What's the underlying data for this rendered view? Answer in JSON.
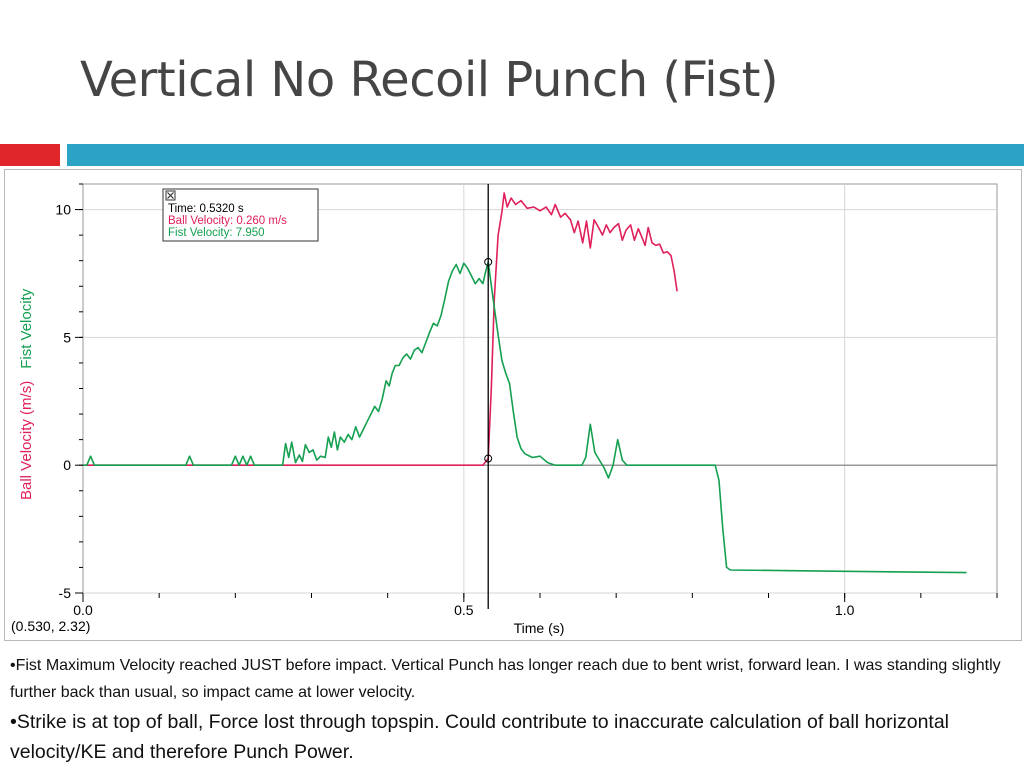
{
  "slide": {
    "title": "Vertical No Recoil Punch (Fist)",
    "colors": {
      "title": "#454545",
      "accent_red": "#e0262b",
      "accent_blue": "#2aa3c4"
    }
  },
  "chart_data": {
    "type": "line",
    "title": "",
    "xlabel": "Time (s)",
    "ylabel_parts": [
      "Ball Velocity (m/s)",
      "Fist Velocity"
    ],
    "xlim": [
      0,
      1.2
    ],
    "ylim": [
      -5,
      11
    ],
    "x_ticks": [
      {
        "v": 0,
        "label": "0.0"
      },
      {
        "v": 0.5,
        "label": "0.5"
      },
      {
        "v": 1.0,
        "label": "1.0"
      }
    ],
    "y_ticks": [
      {
        "v": -5,
        "label": "-5"
      },
      {
        "v": 0,
        "label": "0"
      },
      {
        "v": 5,
        "label": "5"
      },
      {
        "v": 10,
        "label": "10"
      }
    ],
    "grid": true,
    "cursor_x": 0.532,
    "coordinate_readout": "(0.530, 2.32)",
    "readout_box": {
      "lines": [
        "Time: 0.5320 s",
        "Ball Velocity: 0.260 m/s",
        "Fist Velocity: 7.950"
      ],
      "colors": [
        "#000000",
        "#e0205a",
        "#14a050"
      ]
    },
    "series": [
      {
        "name": "Ball Velocity",
        "color": "#e0205a",
        "points": [
          [
            0,
            0
          ],
          [
            0.525,
            0
          ],
          [
            0.532,
            0.26
          ],
          [
            0.536,
            3
          ],
          [
            0.54,
            6.5
          ],
          [
            0.545,
            9
          ],
          [
            0.55,
            9.9
          ],
          [
            0.553,
            10.65
          ],
          [
            0.557,
            10.1
          ],
          [
            0.562,
            10.45
          ],
          [
            0.568,
            10.2
          ],
          [
            0.575,
            10.35
          ],
          [
            0.583,
            10.05
          ],
          [
            0.592,
            10.1
          ],
          [
            0.6,
            9.95
          ],
          [
            0.608,
            10.1
          ],
          [
            0.615,
            9.8
          ],
          [
            0.62,
            10.2
          ],
          [
            0.627,
            9.7
          ],
          [
            0.633,
            9.85
          ],
          [
            0.64,
            9.6
          ],
          [
            0.645,
            9.1
          ],
          [
            0.65,
            9.55
          ],
          [
            0.656,
            8.7
          ],
          [
            0.661,
            9.55
          ],
          [
            0.666,
            8.5
          ],
          [
            0.671,
            9.6
          ],
          [
            0.677,
            9.3
          ],
          [
            0.682,
            9.0
          ],
          [
            0.687,
            9.4
          ],
          [
            0.692,
            9.1
          ],
          [
            0.697,
            9.3
          ],
          [
            0.703,
            9.45
          ],
          [
            0.708,
            8.8
          ],
          [
            0.713,
            9.2
          ],
          [
            0.719,
            9.4
          ],
          [
            0.724,
            8.8
          ],
          [
            0.729,
            9.25
          ],
          [
            0.734,
            8.9
          ],
          [
            0.738,
            8.6
          ],
          [
            0.742,
            9.3
          ],
          [
            0.747,
            8.7
          ],
          [
            0.752,
            8.6
          ],
          [
            0.757,
            8.65
          ],
          [
            0.762,
            8.3
          ],
          [
            0.767,
            8.35
          ],
          [
            0.772,
            8.2
          ],
          [
            0.776,
            7.6
          ],
          [
            0.78,
            6.8
          ]
        ]
      },
      {
        "name": "Fist Velocity",
        "color": "#14a050",
        "points": [
          [
            0,
            0
          ],
          [
            0.005,
            0
          ],
          [
            0.01,
            0.35
          ],
          [
            0.015,
            0
          ],
          [
            0.135,
            0
          ],
          [
            0.14,
            0.35
          ],
          [
            0.145,
            0
          ],
          [
            0.195,
            0
          ],
          [
            0.2,
            0.35
          ],
          [
            0.205,
            0
          ],
          [
            0.21,
            0.35
          ],
          [
            0.215,
            0
          ],
          [
            0.22,
            0.35
          ],
          [
            0.225,
            0
          ],
          [
            0.262,
            0
          ],
          [
            0.266,
            0.85
          ],
          [
            0.27,
            0.3
          ],
          [
            0.274,
            0.9
          ],
          [
            0.279,
            0.1
          ],
          [
            0.284,
            0.4
          ],
          [
            0.288,
            0.15
          ],
          [
            0.292,
            0.8
          ],
          [
            0.297,
            0.5
          ],
          [
            0.302,
            0.6
          ],
          [
            0.307,
            0.2
          ],
          [
            0.312,
            0.35
          ],
          [
            0.318,
            0.3
          ],
          [
            0.322,
            1.1
          ],
          [
            0.326,
            0.7
          ],
          [
            0.33,
            1.3
          ],
          [
            0.334,
            0.6
          ],
          [
            0.338,
            1.1
          ],
          [
            0.343,
            0.9
          ],
          [
            0.348,
            1.2
          ],
          [
            0.353,
            1.0
          ],
          [
            0.358,
            1.5
          ],
          [
            0.363,
            1.1
          ],
          [
            0.368,
            1.4
          ],
          [
            0.373,
            1.7
          ],
          [
            0.378,
            2.0
          ],
          [
            0.383,
            2.3
          ],
          [
            0.388,
            2.1
          ],
          [
            0.393,
            2.6
          ],
          [
            0.398,
            3.3
          ],
          [
            0.402,
            3.1
          ],
          [
            0.406,
            3.6
          ],
          [
            0.41,
            3.9
          ],
          [
            0.415,
            3.9
          ],
          [
            0.42,
            4.2
          ],
          [
            0.425,
            4.35
          ],
          [
            0.43,
            4.15
          ],
          [
            0.435,
            4.5
          ],
          [
            0.44,
            4.6
          ],
          [
            0.445,
            4.4
          ],
          [
            0.45,
            4.8
          ],
          [
            0.455,
            5.2
          ],
          [
            0.46,
            5.55
          ],
          [
            0.465,
            5.45
          ],
          [
            0.47,
            5.85
          ],
          [
            0.475,
            6.5
          ],
          [
            0.48,
            7.2
          ],
          [
            0.485,
            7.6
          ],
          [
            0.49,
            7.85
          ],
          [
            0.495,
            7.5
          ],
          [
            0.5,
            7.9
          ],
          [
            0.505,
            7.7
          ],
          [
            0.51,
            7.4
          ],
          [
            0.515,
            7.1
          ],
          [
            0.52,
            7.3
          ],
          [
            0.525,
            7.1
          ],
          [
            0.528,
            7.5
          ],
          [
            0.532,
            7.95
          ],
          [
            0.538,
            6.6
          ],
          [
            0.545,
            5.1
          ],
          [
            0.55,
            4.1
          ],
          [
            0.555,
            3.6
          ],
          [
            0.56,
            3.2
          ],
          [
            0.565,
            2.1
          ],
          [
            0.57,
            1.1
          ],
          [
            0.575,
            0.65
          ],
          [
            0.58,
            0.45
          ],
          [
            0.59,
            0.3
          ],
          [
            0.6,
            0.35
          ],
          [
            0.61,
            0.1
          ],
          [
            0.62,
            0
          ],
          [
            0.655,
            0
          ],
          [
            0.66,
            0.3
          ],
          [
            0.666,
            1.6
          ],
          [
            0.672,
            0.5
          ],
          [
            0.678,
            0.2
          ],
          [
            0.684,
            -0.1
          ],
          [
            0.69,
            -0.5
          ],
          [
            0.696,
            0
          ],
          [
            0.702,
            1.0
          ],
          [
            0.708,
            0.2
          ],
          [
            0.714,
            0
          ],
          [
            0.83,
            0
          ],
          [
            0.835,
            -0.6
          ],
          [
            0.84,
            -2.5
          ],
          [
            0.845,
            -4.0
          ],
          [
            0.85,
            -4.1
          ],
          [
            1.0,
            -4.15
          ],
          [
            1.16,
            -4.2
          ]
        ]
      }
    ]
  },
  "notes": [
    "•Fist Maximum Velocity reached JUST before impact.  Vertical Punch has longer reach due to bent wrist, forward lean.  I was standing slightly further back than usual, so impact came at lower velocity.",
    "•Strike is at top of ball, Force lost through topspin. Could contribute to inaccurate calculation of ball horizontal velocity/KE and therefore Punch Power."
  ]
}
